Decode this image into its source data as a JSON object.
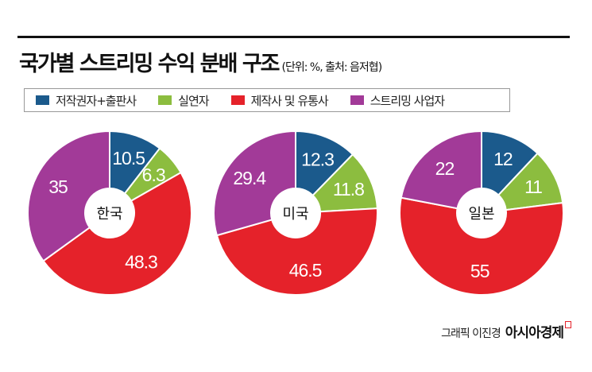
{
  "chart_data": [
    {
      "type": "pie",
      "donut": true,
      "center_label": "한국",
      "categories": [
        "저작권자+출판사",
        "실연자",
        "제작사 및 유통사",
        "스트리밍 사업자"
      ],
      "values": [
        10.5,
        6.3,
        48.3,
        35
      ]
    },
    {
      "type": "pie",
      "donut": true,
      "center_label": "미국",
      "categories": [
        "저작권자+출판사",
        "실연자",
        "제작사 및 유통사",
        "스트리밍 사업자"
      ],
      "values": [
        12.3,
        11.8,
        46.5,
        29.4
      ]
    },
    {
      "type": "pie",
      "donut": true,
      "center_label": "일본",
      "categories": [
        "저작권자+출판사",
        "실연자",
        "제작사 및 유통사",
        "스트리밍 사업자"
      ],
      "values": [
        12,
        11,
        55,
        22
      ]
    }
  ],
  "title": "국가별 스트리밍 수익 분배 구조",
  "subtitle": "(단위: %, 출처: 음저협)",
  "legend": [
    {
      "label": "저작권자+출판사",
      "color": "#1b5a8c"
    },
    {
      "label": "실연자",
      "color": "#8cbd3f"
    },
    {
      "label": "제작사 및 유통사",
      "color": "#e5222a"
    },
    {
      "label": "스트리밍 사업자",
      "color": "#a23a98"
    }
  ],
  "credit": "그래픽 이진경",
  "brand": "아시아경제"
}
